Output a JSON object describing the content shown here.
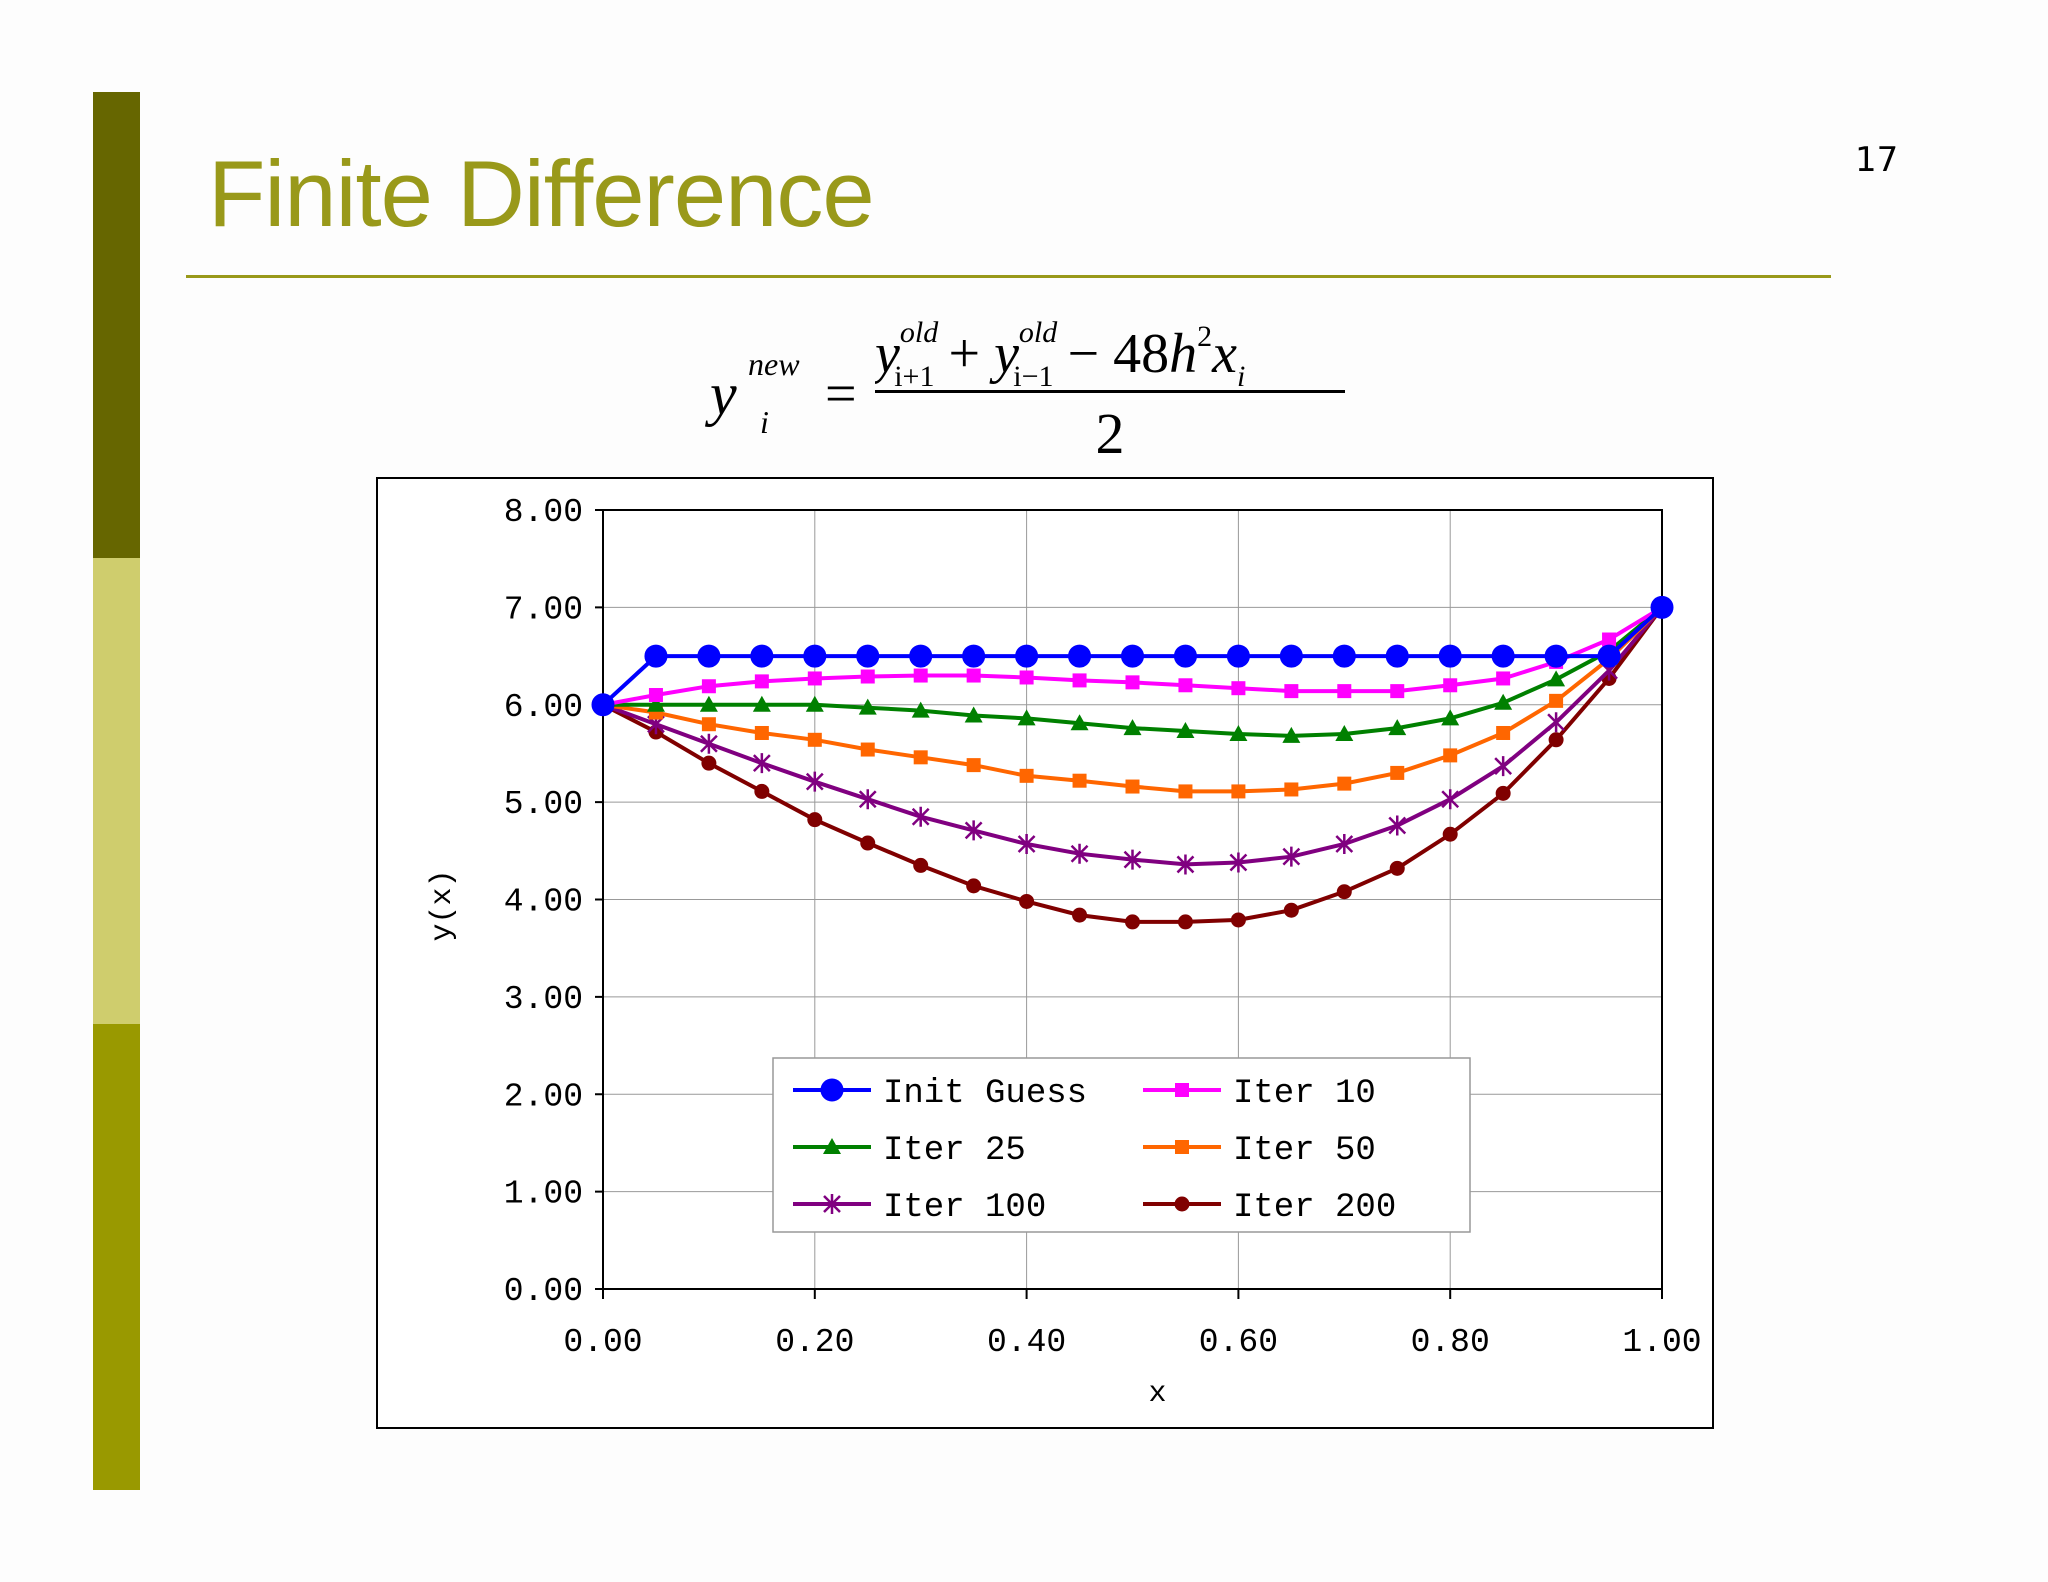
{
  "slide": {
    "title": "Finite Difference",
    "page_number": "17",
    "colors": {
      "band_dark": "#666600",
      "band_light": "#cfcd6d",
      "band_mid": "#999900",
      "title": "#99991a"
    }
  },
  "formula": {
    "lhs": "y",
    "lhs_superscript": "new",
    "lhs_subscript": "i",
    "equals": "=",
    "numerator": "y_{i+1}^{old} + y_{i-1}^{old} − 48h^2 x_i",
    "denominator": "2"
  },
  "chart_data": {
    "type": "line",
    "title": "",
    "xlabel": "x",
    "ylabel": "y(x)",
    "xlim": [
      0,
      1
    ],
    "ylim": [
      0,
      8
    ],
    "x_ticks": [
      "0.00",
      "0.20",
      "0.40",
      "0.60",
      "0.80",
      "1.00"
    ],
    "y_ticks": [
      "0.00",
      "1.00",
      "2.00",
      "3.00",
      "4.00",
      "5.00",
      "6.00",
      "7.00",
      "8.00"
    ],
    "grid": true,
    "legend_position": "bottom-center",
    "x": [
      0.0,
      0.05,
      0.1,
      0.15,
      0.2,
      0.25,
      0.3,
      0.35,
      0.4,
      0.45,
      0.5,
      0.55,
      0.6,
      0.65,
      0.7,
      0.75,
      0.8,
      0.85,
      0.9,
      0.95,
      1.0
    ],
    "series": [
      {
        "name": "Init Guess",
        "color": "#0000ff",
        "marker": "circle",
        "values": [
          6.0,
          6.5,
          6.5,
          6.5,
          6.5,
          6.5,
          6.5,
          6.5,
          6.5,
          6.5,
          6.5,
          6.5,
          6.5,
          6.5,
          6.5,
          6.5,
          6.5,
          6.5,
          6.5,
          6.5,
          7.0
        ]
      },
      {
        "name": "Iter 10",
        "color": "#ff00ff",
        "marker": "square",
        "values": [
          6.0,
          6.1,
          6.19,
          6.24,
          6.27,
          6.29,
          6.3,
          6.3,
          6.28,
          6.25,
          6.23,
          6.2,
          6.17,
          6.14,
          6.14,
          6.14,
          6.2,
          6.27,
          6.44,
          6.67,
          7.0
        ]
      },
      {
        "name": "Iter 25",
        "color": "#008000",
        "marker": "triangle",
        "values": [
          6.0,
          6.0,
          6.0,
          6.0,
          6.0,
          5.97,
          5.94,
          5.89,
          5.86,
          5.81,
          5.76,
          5.73,
          5.7,
          5.68,
          5.7,
          5.76,
          5.86,
          6.02,
          6.26,
          6.55,
          7.0
        ]
      },
      {
        "name": "Iter 50",
        "color": "#ff6600",
        "marker": "square",
        "values": [
          6.0,
          5.92,
          5.8,
          5.71,
          5.64,
          5.54,
          5.46,
          5.38,
          5.27,
          5.22,
          5.16,
          5.11,
          5.11,
          5.13,
          5.19,
          5.3,
          5.48,
          5.71,
          6.04,
          6.47,
          7.0
        ]
      },
      {
        "name": "Iter 100",
        "color": "#800080",
        "marker": "star",
        "values": [
          6.0,
          5.8,
          5.6,
          5.4,
          5.21,
          5.03,
          4.85,
          4.71,
          4.57,
          4.47,
          4.41,
          4.36,
          4.38,
          4.44,
          4.57,
          4.76,
          5.03,
          5.37,
          5.82,
          6.35,
          7.0
        ]
      },
      {
        "name": "Iter 200",
        "color": "#800000",
        "marker": "dot",
        "values": [
          6.0,
          5.72,
          5.4,
          5.11,
          4.82,
          4.58,
          4.35,
          4.14,
          3.98,
          3.84,
          3.77,
          3.77,
          3.79,
          3.89,
          4.08,
          4.32,
          4.67,
          5.09,
          5.64,
          6.27,
          7.0
        ]
      }
    ]
  }
}
